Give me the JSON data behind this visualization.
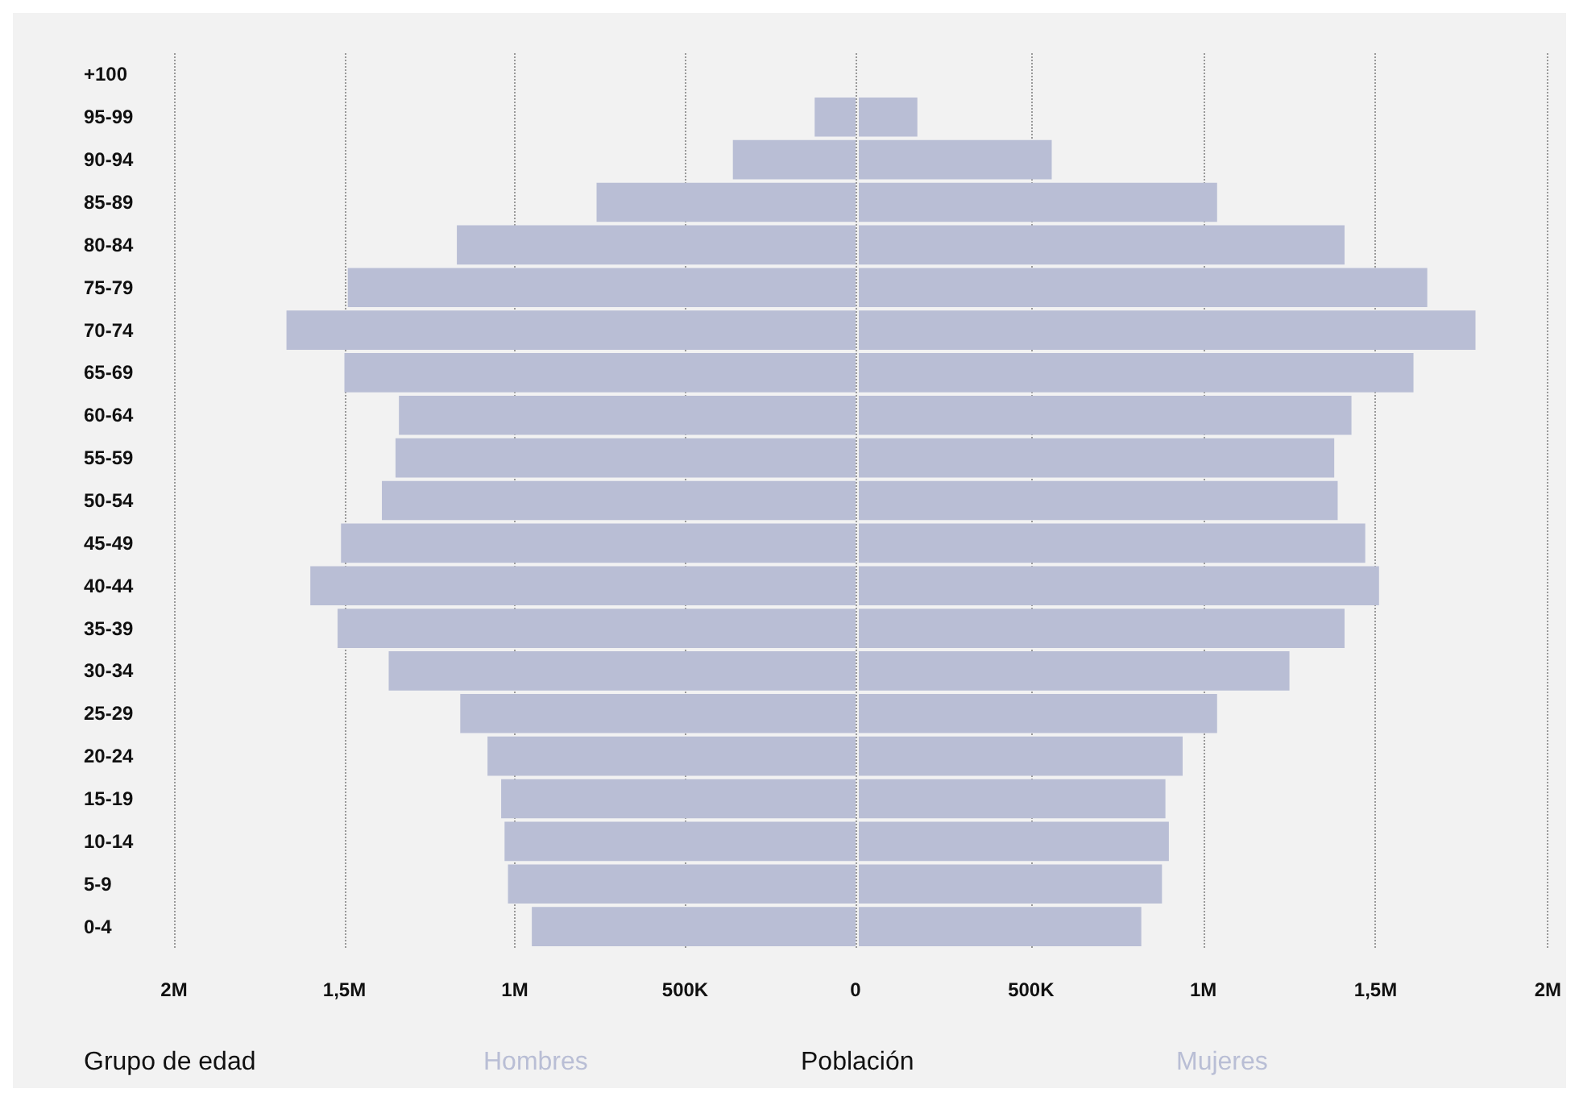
{
  "chart_data": [
    {
      "type": "bar",
      "orientation": "horizontal",
      "ylabel": "Grupo de edad",
      "xlabel": "Población",
      "categories": [
        "+100",
        "95-99",
        "90-94",
        "85-89",
        "80-84",
        "75-79",
        "70-74",
        "65-69",
        "60-64",
        "55-59",
        "50-54",
        "45-49",
        "40-44",
        "35-39",
        "30-34",
        "25-29",
        "20-24",
        "15-19",
        "10-14",
        "5-9",
        "0-4"
      ],
      "series": [
        {
          "name": "Hombres",
          "color": "#b9bed5",
          "values": [
            null,
            120000,
            360000,
            760000,
            1170000,
            1490000,
            1670000,
            1500000,
            1340000,
            1350000,
            1390000,
            1510000,
            1600000,
            1520000,
            1370000,
            1160000,
            1080000,
            1040000,
            1030000,
            1020000,
            950000
          ]
        }
      ],
      "xlim": [
        2000000,
        0
      ],
      "xticks": [
        {
          "value": 2000000,
          "label": "2M"
        },
        {
          "value": 1500000,
          "label": "1,5M"
        },
        {
          "value": 1000000,
          "label": "1M"
        },
        {
          "value": 500000,
          "label": "500K"
        },
        0
      ],
      "grid": "x",
      "legend": "bottom"
    },
    {
      "type": "bar",
      "orientation": "horizontal",
      "categories": [
        null,
        null,
        null,
        null,
        null,
        null,
        null,
        null,
        null,
        null,
        null,
        null,
        null,
        null,
        null,
        null,
        null,
        null,
        null,
        null,
        null
      ],
      "series": [
        {
          "name": "Mujeres",
          "color": "#b9bed5",
          "values": [
            null,
            170000,
            560000,
            1040000,
            1410000,
            1650000,
            1790000,
            1610000,
            1430000,
            1380000,
            1390000,
            1470000,
            1510000,
            1410000,
            1250000,
            1040000,
            940000,
            890000,
            900000,
            880000,
            820000
          ]
        }
      ],
      "xlim": [
        0,
        2000000
      ],
      "xticks": [
        {
          "value": 500000,
          "label": "500K"
        },
        {
          "value": 1000000,
          "label": "1M"
        },
        {
          "value": 1500000,
          "label": "1,5M"
        },
        {
          "value": 2000000,
          "label": "2M"
        }
      ],
      "grid": "x",
      "legend": "bottom",
      "tick_labels": "x"
    }
  ]
}
